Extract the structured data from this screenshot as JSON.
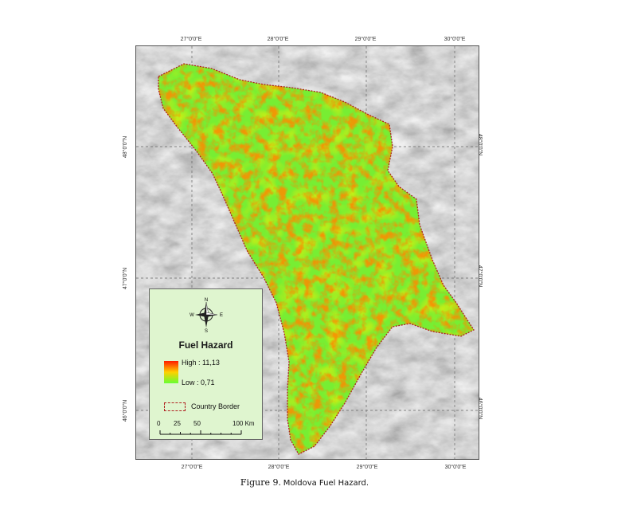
{
  "map": {
    "graticule_top": [
      "27°0'0\"E",
      "28°0'0\"E",
      "29°0'0\"E",
      "30°0'0\"E"
    ],
    "graticule_bottom": [
      "27°0'0\"E",
      "28°0'0\"E",
      "29°0'0\"E",
      "30°0'0\"E"
    ],
    "graticule_left": [
      "48°0'0\"N",
      "47°0'0\"N",
      "46°0'0\"N"
    ],
    "graticule_right": [
      "48°0'0\"N",
      "47°0'0\"N",
      "46°0'0\"N"
    ],
    "colors": {
      "high": "#ff1a00",
      "mid": "#ffd000",
      "low": "#66ff33",
      "border": "#b02020",
      "terrain": "#9a9a9a"
    }
  },
  "legend": {
    "compass": {
      "n": "N",
      "s": "S",
      "e": "E",
      "w": "W"
    },
    "title": "Fuel Hazard",
    "high_label": "High : 11,13",
    "low_label": "Low : 0,71",
    "border_label": "Country Border",
    "scale": {
      "labels": [
        "0",
        "25",
        "50",
        "100 Km"
      ]
    }
  },
  "caption": {
    "lead": "Figure 9.",
    "rest": "Moldova Fuel Hazard."
  }
}
